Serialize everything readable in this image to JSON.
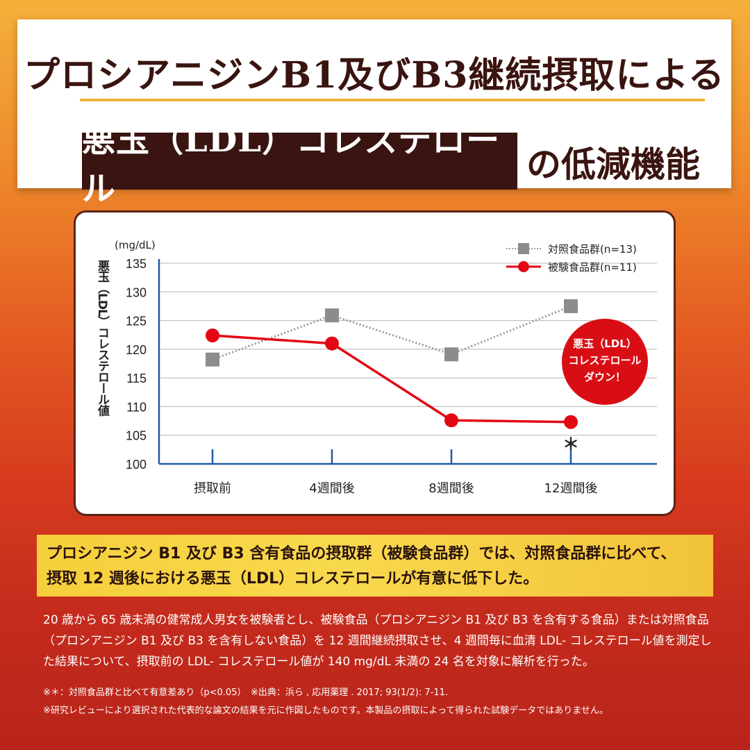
{
  "title": {
    "line1": "プロシアニジンB1及びB3継続摂取による",
    "boxed": "悪玉（LDL）コレステロール",
    "tail": "の低減機能"
  },
  "chart_data": {
    "type": "line",
    "unit": "(mg/dL)",
    "ylabel": "悪玉（LDL）コレステロール値",
    "ylim": [
      100,
      135
    ],
    "yticks": [
      100,
      105,
      110,
      115,
      120,
      125,
      130,
      135
    ],
    "categories": [
      "摂取前",
      "4週間後",
      "8週間後",
      "12週間後"
    ],
    "series": [
      {
        "name": "対照食品群(n=13)",
        "values": [
          118.2,
          125.9,
          119.1,
          127.5
        ],
        "color": "#8c8c8c",
        "marker": "square",
        "line": "dotted"
      },
      {
        "name": "被験食品群(n=11)",
        "values": [
          122.4,
          121.0,
          107.6,
          107.3
        ],
        "color": "#e30613",
        "marker": "circle",
        "line": "solid"
      }
    ],
    "significance_mark": "＊",
    "callout": [
      "悪玉（LDL）",
      "コレステロール",
      "ダウン！"
    ],
    "axis_color": "#1f5aa6",
    "grid": true,
    "legend_position": "top-right"
  },
  "summary": {
    "line1": "プロシアニジン B1 及び B3 含有食品の摂取群（被験食品群）では、対照食品群に比べて、",
    "line2": "摂取 12 週後における悪玉（LDL）コレステロールが有意に低下した。"
  },
  "description": "20 歳から 65 歳未満の健常成人男女を被験者とし、被験食品（プロシアニジン B1 及び B3 を含有する食品）または対照食品（プロシアニジン B1 及び B3 を含有しない食品）を 12 週間継続摂取させ、4 週間毎に血清 LDL- コレステロール値を測定した結果について、摂取前の LDL- コレステロール値が 140 mg/dL 未満の 24 名を対象に解析を行った。",
  "notes": {
    "note1": "※＊：対照食品群と比べて有意差あり（p<0.05）　※出典：浜ら , 応用薬理 . 2017; 93(1/2): 7-11.",
    "note2": "※研究レビューにより選択された代表的な論文の結果を元に作図したものです。本製品の摂取によって得られた試験データではありません。"
  }
}
